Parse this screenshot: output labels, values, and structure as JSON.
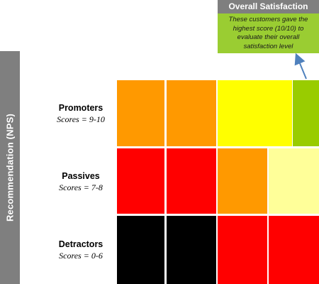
{
  "axis": {
    "label": "Recommendation (NPS)"
  },
  "rows": [
    {
      "title": "Promoters",
      "subtitle": "Scores = 9-10"
    },
    {
      "title": "Passives",
      "subtitle": "Scores = 7-8"
    },
    {
      "title": "Detractors",
      "subtitle": "Scores = 0-6"
    }
  ],
  "header": {
    "title": "Overall Satisfaction",
    "callout": "These customers gave the highest score (10/10) to evaluate their overall satisfaction level"
  },
  "colors": {
    "orange": "#ff9900",
    "red": "#ff0000",
    "yellow": "#ffff00",
    "light_yellow": "#ffff99",
    "green": "#99cc00",
    "black": "#000000",
    "gray": "#7f7f7f",
    "arrow": "#4f81bd"
  }
}
